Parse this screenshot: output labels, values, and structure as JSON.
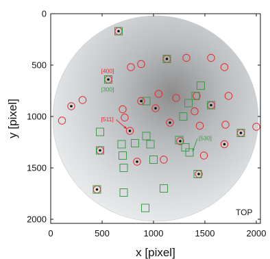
{
  "chart_data": {
    "type": "scatter",
    "xlabel": "x [pixel]",
    "ylabel": "y [pixel]",
    "xlim": [
      0,
      2040
    ],
    "ylim": [
      0,
      2040
    ],
    "y_inverted": true,
    "x_ticks": [
      0,
      500,
      1000,
      1500,
      2000
    ],
    "y_ticks": [
      0,
      500,
      1000,
      1500,
      2000
    ],
    "detector_center": [
      1020,
      1020
    ],
    "detector_radius": 1000,
    "corner_label": "TOP",
    "colors": {
      "circle": "#e8282c",
      "square": "#3a9a4a",
      "dot": "#111111"
    },
    "series": [
      {
        "marker": "circle",
        "color": "#e8282c",
        "points": [
          [
            660,
            170
          ],
          [
            560,
            640
          ],
          [
            780,
            520
          ],
          [
            880,
            490
          ],
          [
            1130,
            440
          ],
          [
            1320,
            430
          ],
          [
            1560,
            430
          ],
          [
            1690,
            520
          ],
          [
            200,
            900
          ],
          [
            310,
            840
          ],
          [
            110,
            1040
          ],
          [
            700,
            930
          ],
          [
            720,
            1010
          ],
          [
            1050,
            780
          ],
          [
            1220,
            820
          ],
          [
            1420,
            800
          ],
          [
            1400,
            950
          ],
          [
            1730,
            800
          ],
          [
            770,
            1140
          ],
          [
            880,
            850
          ],
          [
            1020,
            920
          ],
          [
            1160,
            1060
          ],
          [
            1560,
            890
          ],
          [
            1450,
            1090
          ],
          [
            1700,
            1080
          ],
          [
            1850,
            1160
          ],
          [
            2000,
            1100
          ],
          [
            480,
            1330
          ],
          [
            840,
            1440
          ],
          [
            1100,
            1420
          ],
          [
            1260,
            1240
          ],
          [
            1490,
            1380
          ],
          [
            1690,
            1270
          ],
          [
            450,
            1710
          ],
          [
            1440,
            1560
          ]
        ]
      },
      {
        "marker": "square",
        "color": "#3a9a4a",
        "points": [
          [
            660,
            170
          ],
          [
            560,
            640
          ],
          [
            480,
            1150
          ],
          [
            480,
            1330
          ],
          [
            450,
            1710
          ],
          [
            690,
            1270
          ],
          [
            700,
            1380
          ],
          [
            710,
            1500
          ],
          [
            710,
            1740
          ],
          [
            820,
            1260
          ],
          [
            930,
            1190
          ],
          [
            970,
            1270
          ],
          [
            1000,
            1420
          ],
          [
            930,
            850
          ],
          [
            1130,
            440
          ],
          [
            1290,
            1000
          ],
          [
            1340,
            870
          ],
          [
            1410,
            800
          ],
          [
            1460,
            700
          ],
          [
            1560,
            890
          ],
          [
            1250,
            1230
          ],
          [
            1310,
            1300
          ],
          [
            1350,
            1350
          ],
          [
            1430,
            1560
          ],
          [
            1850,
            1160
          ],
          [
            1100,
            1700
          ],
          [
            920,
            1890
          ]
        ]
      },
      {
        "marker": "dot",
        "color": "#111111",
        "points": [
          [
            660,
            170
          ],
          [
            560,
            640
          ],
          [
            1130,
            440
          ],
          [
            880,
            850
          ],
          [
            1020,
            920
          ],
          [
            1160,
            1060
          ],
          [
            1560,
            890
          ],
          [
            770,
            1140
          ],
          [
            1260,
            1240
          ],
          [
            480,
            1330
          ],
          [
            840,
            1440
          ],
          [
            450,
            1710
          ],
          [
            1440,
            1560
          ],
          [
            1690,
            1270
          ],
          [
            1850,
            1160
          ],
          [
            200,
            900
          ]
        ]
      }
    ],
    "annotations": [
      {
        "text": "[400]",
        "color": "#e8282c",
        "x": 490,
        "y": 575
      },
      {
        "text": "[300]",
        "color": "#3a9a4a",
        "x": 490,
        "y": 755
      },
      {
        "text": "[511]",
        "color": "#e8282c",
        "x": 490,
        "y": 1045,
        "arrow_to": [
          740,
          1120
        ]
      },
      {
        "text": "[530]",
        "color": "#3a9a4a",
        "x": 1440,
        "y": 1230,
        "arrow_to": [
          1380,
          1340
        ]
      }
    ]
  }
}
